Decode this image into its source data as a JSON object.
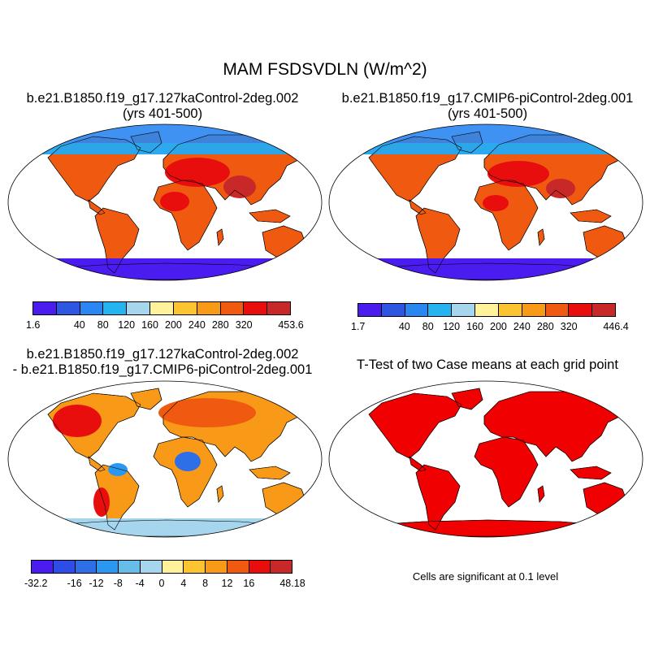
{
  "title": "MAM FSDSVDLN (W/m^2)",
  "panels": {
    "top_left": {
      "title_line1": "b.e21.B1850.f19_g17.127kaControl-2deg.002",
      "title_line2": "(yrs 401-500)",
      "colorbar_labels": [
        "1.6",
        "40",
        "80",
        "120",
        "160",
        "200",
        "240",
        "280",
        "320",
        "453.6"
      ],
      "colors": [
        "#4b1cf0",
        "#2e56e0",
        "#2a86f0",
        "#26b4f0",
        "#a6d6ee",
        "#fff29a",
        "#fcc430",
        "#f89a18",
        "#f05a10",
        "#e80e0e",
        "#c82828"
      ]
    },
    "top_right": {
      "title_line1": "b.e21.B1850.f19_g17.CMIP6-piControl-2deg.001",
      "title_line2": "(yrs 401-500)",
      "colorbar_labels": [
        "1.7",
        "40",
        "80",
        "120",
        "160",
        "200",
        "240",
        "280",
        "320",
        "446.4"
      ],
      "colors": [
        "#4b1cf0",
        "#2e56e0",
        "#2a86f0",
        "#26b4f0",
        "#a6d6ee",
        "#fff29a",
        "#fcc430",
        "#f89a18",
        "#f05a10",
        "#e80e0e",
        "#c82828"
      ]
    },
    "bottom_left": {
      "title_line1": "b.e21.B1850.f19_g17.127kaControl-2deg.002",
      "title_line2": "- b.e21.B1850.f19_g17.CMIP6-piControl-2deg.001",
      "colorbar_labels": [
        "-32.2",
        "-16",
        "-12",
        "-8",
        "-4",
        "0",
        "4",
        "8",
        "12",
        "16",
        "48.18"
      ],
      "colors": [
        "#4b1cf0",
        "#2e4ce6",
        "#2e6fe8",
        "#2a98f0",
        "#66bde8",
        "#a6d6ee",
        "#fff29a",
        "#fcc430",
        "#f89a18",
        "#f05a10",
        "#e80e0e",
        "#c82828"
      ]
    },
    "bottom_right": {
      "title_line1": "T-Test of two Case means at each grid point",
      "note": "Cells are significant at 0.1 level",
      "color": "#f00000"
    }
  }
}
